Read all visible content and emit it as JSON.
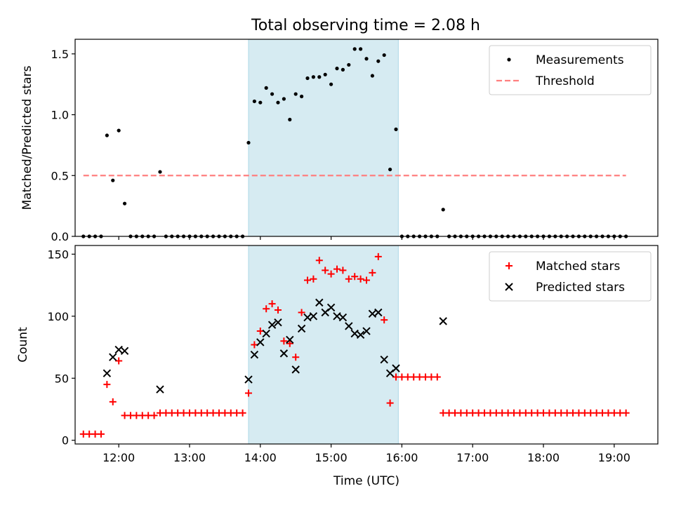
{
  "title": "Total observing time = 2.08 h",
  "chart_data": [
    {
      "type": "scatter",
      "ylabel": "Matched/Predicted stars",
      "xlabel": "",
      "xlim": [
        "11:23",
        "19:37"
      ],
      "ylim": [
        0,
        1.62
      ],
      "yticks": [
        "0.0",
        "0.5",
        "1.0",
        "1.5"
      ],
      "shaded_interval": [
        "13:50",
        "15:57"
      ],
      "legend_position": "top-right",
      "series": [
        {
          "name": "Measurements",
          "style": "point",
          "color": "#000000",
          "points": [
            [
              "11:30",
              0
            ],
            [
              "11:35",
              0
            ],
            [
              "11:40",
              0
            ],
            [
              "11:45",
              0
            ],
            [
              "11:50",
              0.83
            ],
            [
              "11:55",
              0.46
            ],
            [
              "12:00",
              0.87
            ],
            [
              "12:05",
              0.27
            ],
            [
              "12:10",
              0
            ],
            [
              "12:15",
              0
            ],
            [
              "12:20",
              0
            ],
            [
              "12:25",
              0
            ],
            [
              "12:30",
              0
            ],
            [
              "12:35",
              0.53
            ],
            [
              "12:40",
              0
            ],
            [
              "12:45",
              0
            ],
            [
              "12:50",
              0
            ],
            [
              "12:55",
              0
            ],
            [
              "13:00",
              0
            ],
            [
              "13:05",
              0
            ],
            [
              "13:10",
              0
            ],
            [
              "13:15",
              0
            ],
            [
              "13:20",
              0
            ],
            [
              "13:25",
              0
            ],
            [
              "13:30",
              0
            ],
            [
              "13:35",
              0
            ],
            [
              "13:40",
              0
            ],
            [
              "13:45",
              0
            ],
            [
              "13:50",
              0.77
            ],
            [
              "13:55",
              1.11
            ],
            [
              "14:00",
              1.1
            ],
            [
              "14:05",
              1.22
            ],
            [
              "14:10",
              1.17
            ],
            [
              "14:15",
              1.1
            ],
            [
              "14:20",
              1.13
            ],
            [
              "14:25",
              0.96
            ],
            [
              "14:30",
              1.17
            ],
            [
              "14:35",
              1.15
            ],
            [
              "14:40",
              1.3
            ],
            [
              "14:45",
              1.31
            ],
            [
              "14:50",
              1.31
            ],
            [
              "14:55",
              1.33
            ],
            [
              "15:00",
              1.25
            ],
            [
              "15:05",
              1.38
            ],
            [
              "15:10",
              1.37
            ],
            [
              "15:15",
              1.41
            ],
            [
              "15:20",
              1.54
            ],
            [
              "15:25",
              1.54
            ],
            [
              "15:30",
              1.46
            ],
            [
              "15:35",
              1.32
            ],
            [
              "15:40",
              1.44
            ],
            [
              "15:45",
              1.49
            ],
            [
              "15:50",
              0.55
            ],
            [
              "15:55",
              0.88
            ],
            [
              "16:00",
              0
            ],
            [
              "16:05",
              0
            ],
            [
              "16:10",
              0
            ],
            [
              "16:15",
              0
            ],
            [
              "16:20",
              0
            ],
            [
              "16:25",
              0
            ],
            [
              "16:30",
              0
            ],
            [
              "16:35",
              0.22
            ],
            [
              "16:40",
              0
            ],
            [
              "16:45",
              0
            ],
            [
              "16:50",
              0
            ],
            [
              "16:55",
              0
            ],
            [
              "17:00",
              0
            ],
            [
              "17:05",
              0
            ],
            [
              "17:10",
              0
            ],
            [
              "17:15",
              0
            ],
            [
              "17:20",
              0
            ],
            [
              "17:25",
              0
            ],
            [
              "17:30",
              0
            ],
            [
              "17:35",
              0
            ],
            [
              "17:40",
              0
            ],
            [
              "17:45",
              0
            ],
            [
              "17:50",
              0
            ],
            [
              "17:55",
              0
            ],
            [
              "18:00",
              0
            ],
            [
              "18:05",
              0
            ],
            [
              "18:10",
              0
            ],
            [
              "18:15",
              0
            ],
            [
              "18:20",
              0
            ],
            [
              "18:25",
              0
            ],
            [
              "18:30",
              0
            ],
            [
              "18:35",
              0
            ],
            [
              "18:40",
              0
            ],
            [
              "18:45",
              0
            ],
            [
              "18:50",
              0
            ],
            [
              "18:55",
              0
            ],
            [
              "19:00",
              0
            ],
            [
              "19:05",
              0
            ],
            [
              "19:10",
              0
            ]
          ]
        },
        {
          "name": "Threshold",
          "style": "dashed-line",
          "color": "#ff7f7f",
          "points": [
            [
              "11:30",
              0.5
            ],
            [
              "19:10",
              0.5
            ]
          ]
        }
      ]
    },
    {
      "type": "scatter",
      "ylabel": "Count",
      "xlabel": "Time (UTC)",
      "xlim": [
        "11:23",
        "19:37"
      ],
      "ylim": [
        -3,
        157
      ],
      "yticks": [
        "0",
        "50",
        "100",
        "150"
      ],
      "xticks": [
        "12:00",
        "13:00",
        "14:00",
        "15:00",
        "16:00",
        "17:00",
        "18:00",
        "19:00"
      ],
      "shaded_interval": [
        "13:50",
        "15:57"
      ],
      "legend_position": "top-right",
      "series": [
        {
          "name": "Matched stars",
          "style": "plus",
          "color": "#ff0000",
          "points": [
            [
              "11:30",
              5
            ],
            [
              "11:35",
              5
            ],
            [
              "11:40",
              5
            ],
            [
              "11:45",
              5
            ],
            [
              "11:50",
              45
            ],
            [
              "11:55",
              31
            ],
            [
              "12:00",
              64
            ],
            [
              "12:05",
              20
            ],
            [
              "12:10",
              20
            ],
            [
              "12:15",
              20
            ],
            [
              "12:20",
              20
            ],
            [
              "12:25",
              20
            ],
            [
              "12:30",
              20
            ],
            [
              "12:35",
              22
            ],
            [
              "12:40",
              22
            ],
            [
              "12:45",
              22
            ],
            [
              "12:50",
              22
            ],
            [
              "12:55",
              22
            ],
            [
              "13:00",
              22
            ],
            [
              "13:05",
              22
            ],
            [
              "13:10",
              22
            ],
            [
              "13:15",
              22
            ],
            [
              "13:20",
              22
            ],
            [
              "13:25",
              22
            ],
            [
              "13:30",
              22
            ],
            [
              "13:35",
              22
            ],
            [
              "13:40",
              22
            ],
            [
              "13:45",
              22
            ],
            [
              "13:50",
              38
            ],
            [
              "13:55",
              77
            ],
            [
              "14:00",
              88
            ],
            [
              "14:05",
              106
            ],
            [
              "14:10",
              110
            ],
            [
              "14:15",
              105
            ],
            [
              "14:20",
              80
            ],
            [
              "14:25",
              78
            ],
            [
              "14:30",
              67
            ],
            [
              "14:35",
              103
            ],
            [
              "14:40",
              129
            ],
            [
              "14:45",
              130
            ],
            [
              "14:50",
              145
            ],
            [
              "14:55",
              137
            ],
            [
              "15:00",
              134
            ],
            [
              "15:05",
              138
            ],
            [
              "15:10",
              137
            ],
            [
              "15:15",
              130
            ],
            [
              "15:20",
              132
            ],
            [
              "15:25",
              130
            ],
            [
              "15:30",
              129
            ],
            [
              "15:35",
              135
            ],
            [
              "15:40",
              148
            ],
            [
              "15:45",
              97
            ],
            [
              "15:50",
              30
            ],
            [
              "15:55",
              51
            ],
            [
              "16:00",
              51
            ],
            [
              "16:05",
              51
            ],
            [
              "16:10",
              51
            ],
            [
              "16:15",
              51
            ],
            [
              "16:20",
              51
            ],
            [
              "16:25",
              51
            ],
            [
              "16:30",
              51
            ],
            [
              "16:35",
              22
            ],
            [
              "16:40",
              22
            ],
            [
              "16:45",
              22
            ],
            [
              "16:50",
              22
            ],
            [
              "16:55",
              22
            ],
            [
              "17:00",
              22
            ],
            [
              "17:05",
              22
            ],
            [
              "17:10",
              22
            ],
            [
              "17:15",
              22
            ],
            [
              "17:20",
              22
            ],
            [
              "17:25",
              22
            ],
            [
              "17:30",
              22
            ],
            [
              "17:35",
              22
            ],
            [
              "17:40",
              22
            ],
            [
              "17:45",
              22
            ],
            [
              "17:50",
              22
            ],
            [
              "17:55",
              22
            ],
            [
              "18:00",
              22
            ],
            [
              "18:05",
              22
            ],
            [
              "18:10",
              22
            ],
            [
              "18:15",
              22
            ],
            [
              "18:20",
              22
            ],
            [
              "18:25",
              22
            ],
            [
              "18:30",
              22
            ],
            [
              "18:35",
              22
            ],
            [
              "18:40",
              22
            ],
            [
              "18:45",
              22
            ],
            [
              "18:50",
              22
            ],
            [
              "18:55",
              22
            ],
            [
              "19:00",
              22
            ],
            [
              "19:05",
              22
            ],
            [
              "19:10",
              22
            ]
          ]
        },
        {
          "name": "Predicted stars",
          "style": "x",
          "color": "#000000",
          "points": [
            [
              "11:50",
              54
            ],
            [
              "11:55",
              67
            ],
            [
              "12:00",
              73
            ],
            [
              "12:05",
              72
            ],
            [
              "12:35",
              41
            ],
            [
              "13:50",
              49
            ],
            [
              "13:55",
              69
            ],
            [
              "14:00",
              79
            ],
            [
              "14:05",
              86
            ],
            [
              "14:10",
              93
            ],
            [
              "14:15",
              95
            ],
            [
              "14:20",
              70
            ],
            [
              "14:25",
              81
            ],
            [
              "14:30",
              57
            ],
            [
              "14:35",
              90
            ],
            [
              "14:40",
              99
            ],
            [
              "14:45",
              100
            ],
            [
              "14:50",
              111
            ],
            [
              "14:55",
              103
            ],
            [
              "15:00",
              107
            ],
            [
              "15:05",
              100
            ],
            [
              "15:10",
              99
            ],
            [
              "15:15",
              92
            ],
            [
              "15:20",
              86
            ],
            [
              "15:25",
              85
            ],
            [
              "15:30",
              88
            ],
            [
              "15:35",
              102
            ],
            [
              "15:40",
              103
            ],
            [
              "15:45",
              65
            ],
            [
              "15:50",
              54
            ],
            [
              "15:55",
              58
            ],
            [
              "16:35",
              96
            ]
          ]
        }
      ]
    }
  ]
}
